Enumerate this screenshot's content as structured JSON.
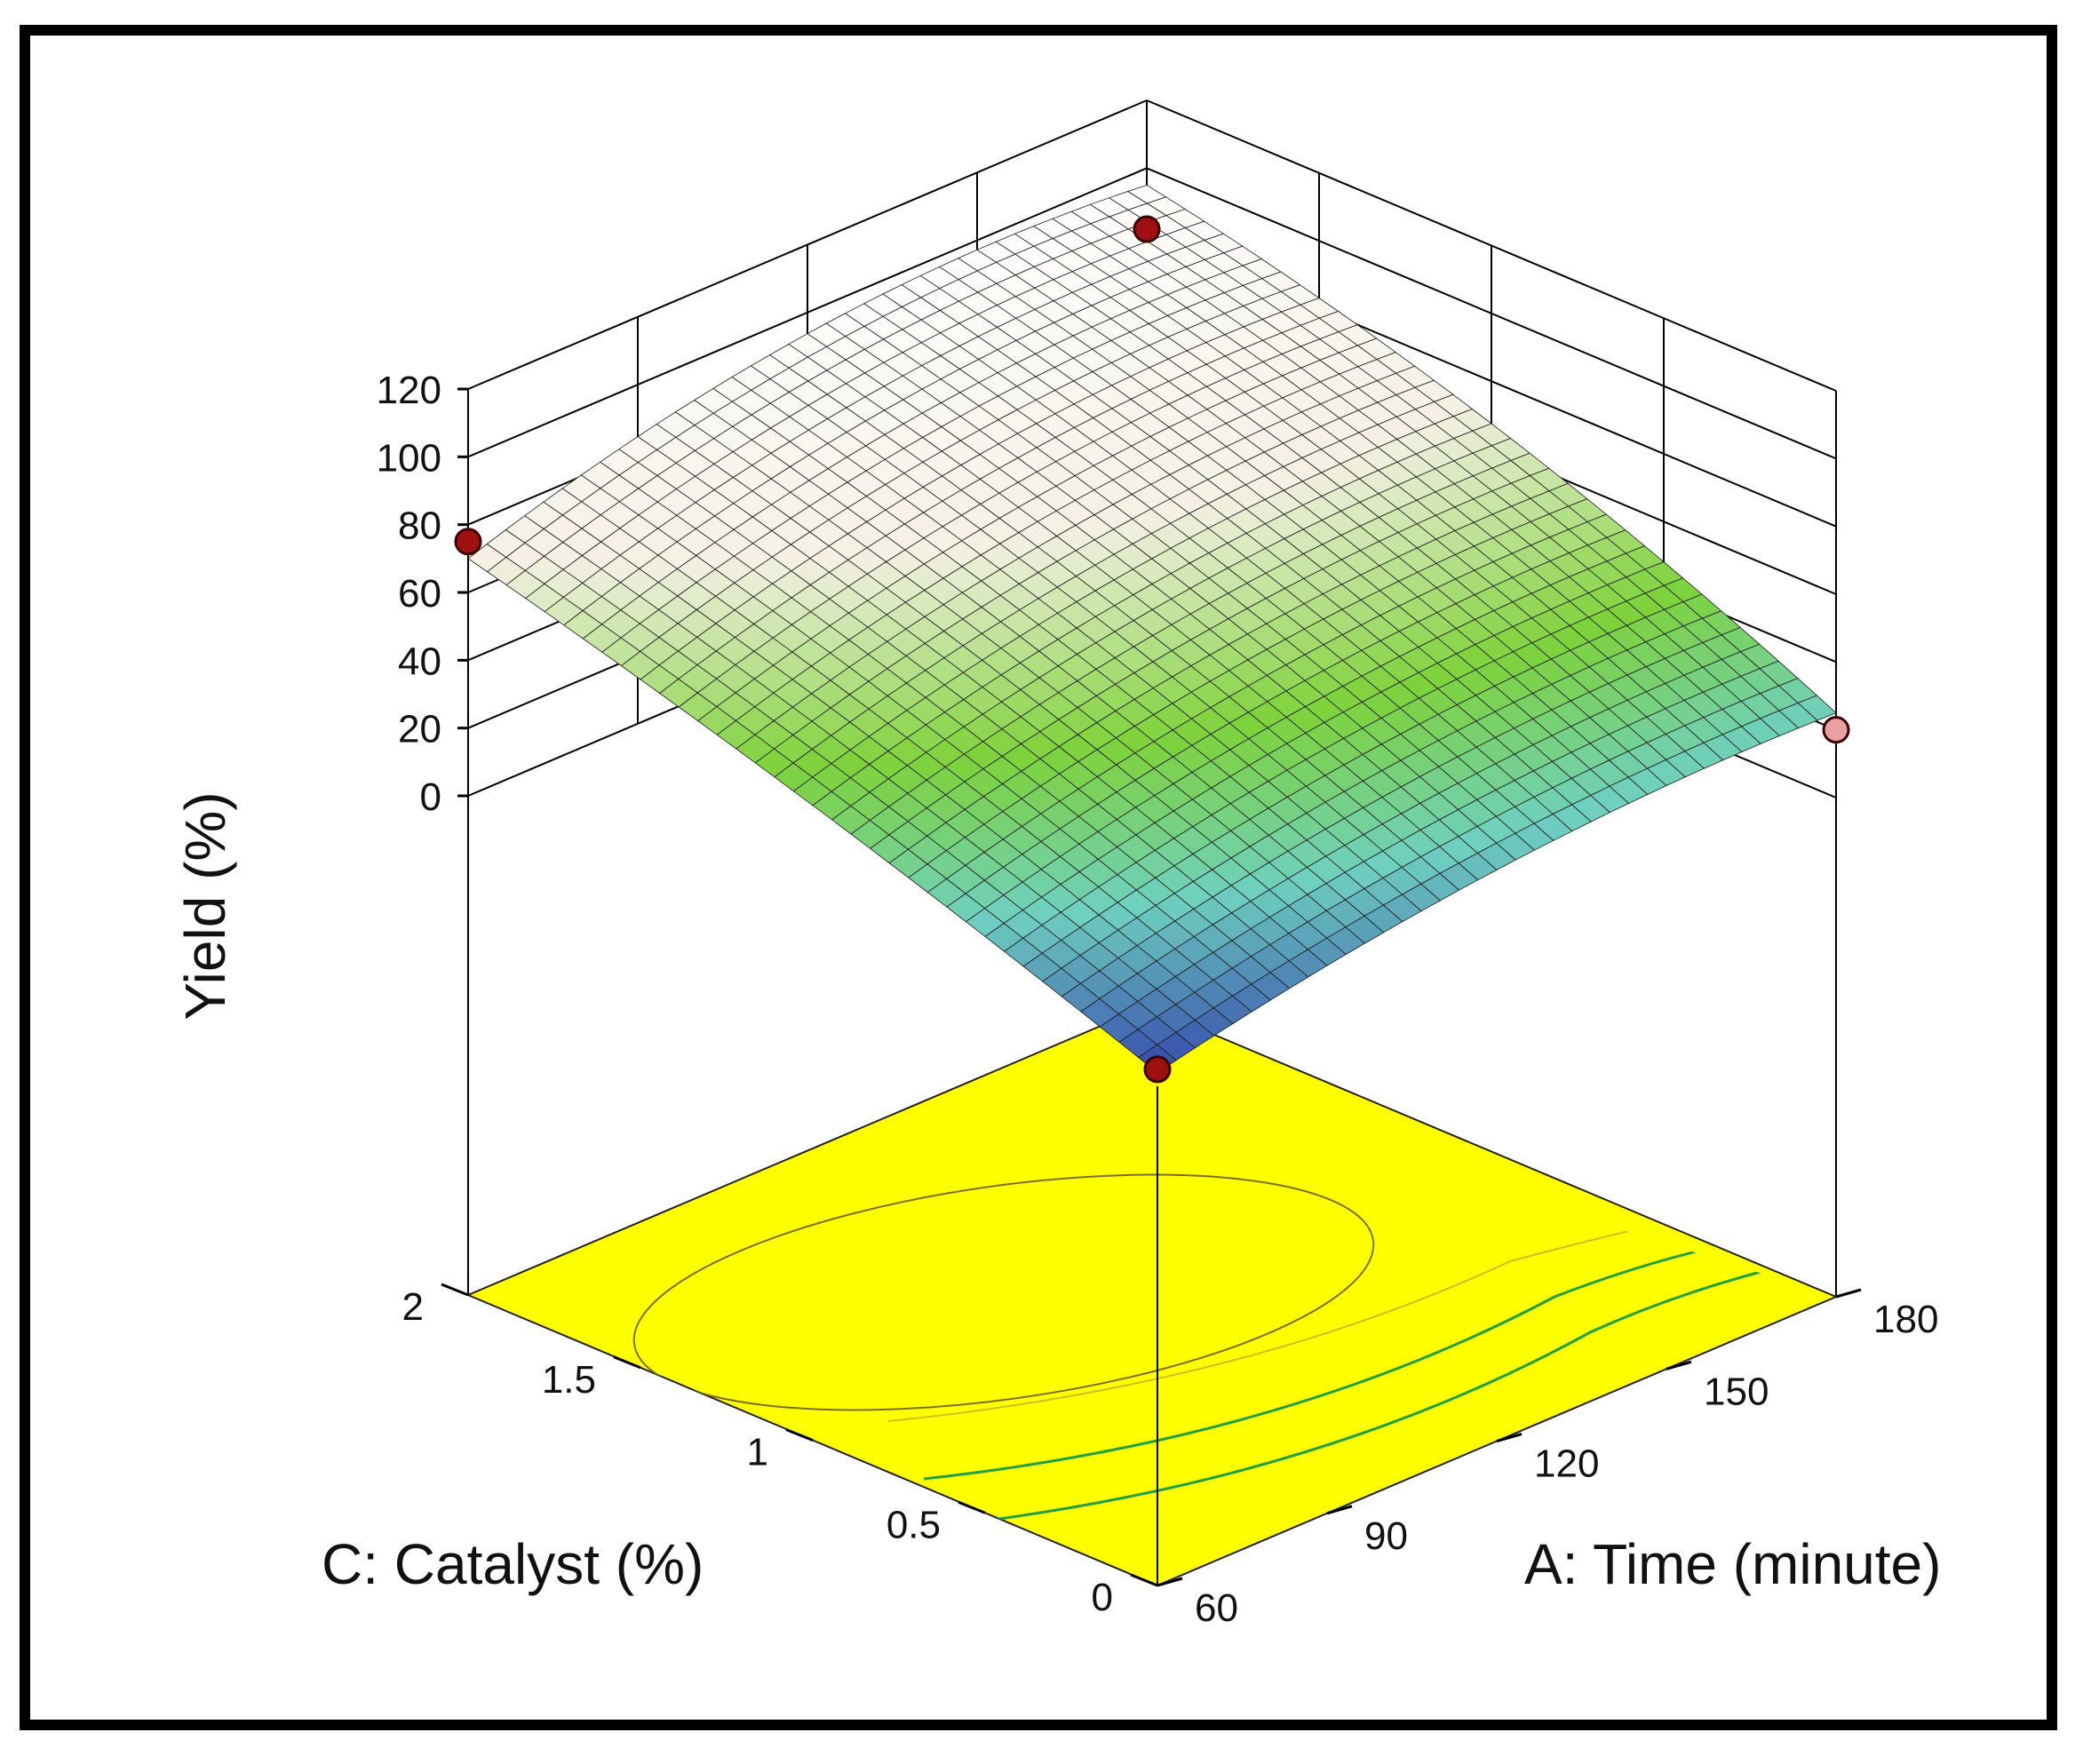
{
  "chart_data": {
    "type": "surface",
    "title": "",
    "zlabel": "Yield (%)",
    "xlabel": "A: Time (minute)",
    "ylabel": "C: Catalyst (%)",
    "z_ticks": [
      "0",
      "20",
      "40",
      "60",
      "80",
      "100",
      "120"
    ],
    "z_tick_values": [
      0,
      20,
      40,
      60,
      80,
      100,
      120
    ],
    "x_ticks": [
      "60",
      "90",
      "120",
      "150",
      "180"
    ],
    "x_tick_values": [
      60,
      90,
      120,
      150,
      180
    ],
    "y_ticks": [
      "0",
      "0.5",
      "1",
      "1.5",
      "2"
    ],
    "y_tick_values": [
      0,
      0.5,
      1,
      1.5,
      2
    ],
    "xlim": [
      60,
      180
    ],
    "ylim": [
      0,
      2
    ],
    "zlim": [
      0,
      120
    ],
    "surface_corners": [
      {
        "time": 60,
        "catalyst": 0,
        "yield": 4
      },
      {
        "time": 60,
        "catalyst": 2,
        "yield": 70
      },
      {
        "time": 180,
        "catalyst": 0,
        "yield": 25
      },
      {
        "time": 180,
        "catalyst": 2,
        "yield": 95
      }
    ],
    "design_points": [
      {
        "time": 60,
        "catalyst": 0,
        "yield": 5
      },
      {
        "time": 60,
        "catalyst": 2,
        "yield": 75
      },
      {
        "time": 180,
        "catalyst": 0,
        "yield": 20
      },
      {
        "time": 180,
        "catalyst": 2,
        "yield": 82
      }
    ],
    "colors": {
      "floor": "#ffff00",
      "surface_low": "#2a2fa8",
      "surface_mid": "#6fd0c0",
      "surface_green": "#7ed23a",
      "surface_high": "#f4f0e4",
      "point": "#a01010",
      "point_light": "#e8a0a0",
      "contour_green": "#20a040",
      "contour_dark": "#7a7020"
    }
  }
}
